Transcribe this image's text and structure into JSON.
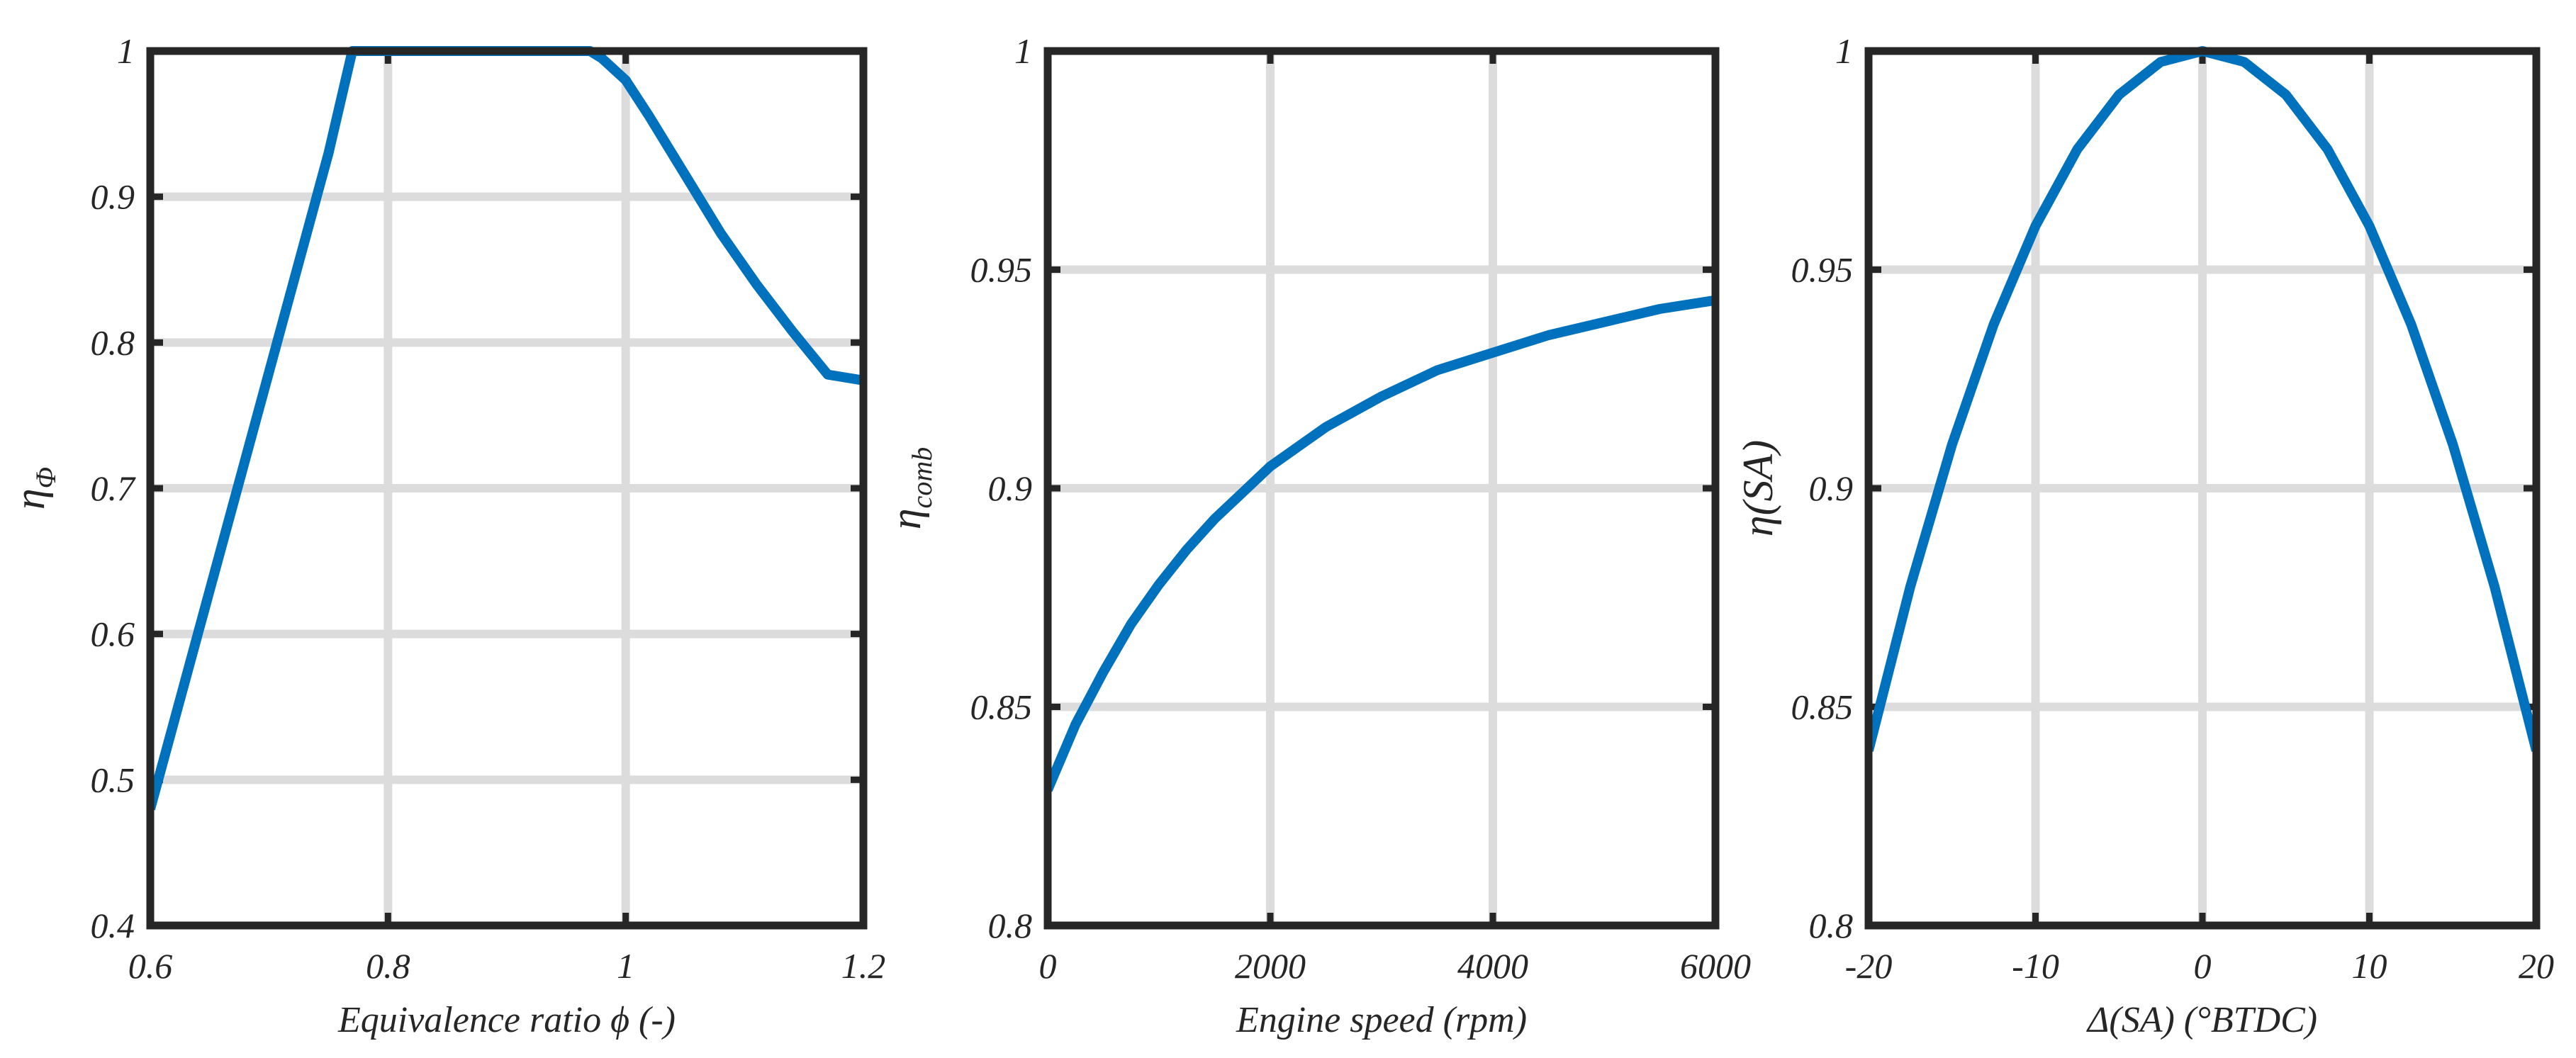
{
  "chart_data": [
    {
      "type": "line",
      "xlabel": "Equivalence ratio   ϕ (-)",
      "ylabel_main": "η",
      "ylabel_sub": "Φ",
      "xlim": [
        0.6,
        1.2
      ],
      "ylim": [
        0.4,
        1.0
      ],
      "xticks": [
        0.6,
        0.8,
        1.0,
        1.2
      ],
      "xtick_labels": [
        "0.6",
        "0.8",
        "1",
        "1.2"
      ],
      "yticks": [
        0.4,
        0.5,
        0.6,
        0.7,
        0.8,
        0.9,
        1.0
      ],
      "ytick_labels": [
        "0.4",
        "0.5",
        "0.6",
        "0.7",
        "0.8",
        "0.9",
        "1"
      ],
      "grid": true,
      "color": "#0072bd",
      "series": [
        {
          "x": [
            0.6,
            0.63,
            0.66,
            0.69,
            0.72,
            0.75,
            0.77,
            0.8,
            0.85,
            0.9,
            0.95,
            0.97,
            0.98,
            1.0,
            1.02,
            1.05,
            1.08,
            1.11,
            1.14,
            1.17,
            1.2
          ],
          "y": [
            0.48,
            0.57,
            0.66,
            0.75,
            0.84,
            0.93,
            1.0,
            1.0,
            1.0,
            1.0,
            1.0,
            1.0,
            0.995,
            0.98,
            0.955,
            0.915,
            0.875,
            0.84,
            0.808,
            0.778,
            0.774
          ]
        }
      ]
    },
    {
      "type": "line",
      "xlabel": "Engine speed (rpm)",
      "ylabel_main": "η",
      "ylabel_sub": "comb",
      "xlim": [
        0,
        6000
      ],
      "ylim": [
        0.8,
        1.0
      ],
      "xticks": [
        0,
        2000,
        4000,
        6000
      ],
      "xtick_labels": [
        "0",
        "2000",
        "4000",
        "6000"
      ],
      "yticks": [
        0.8,
        0.85,
        0.9,
        0.95,
        1.0
      ],
      "ytick_labels": [
        "0.8",
        "0.85",
        "0.9",
        "0.95",
        "1"
      ],
      "grid": true,
      "color": "#0072bd",
      "series": [
        {
          "x": [
            0,
            250,
            500,
            750,
            1000,
            1250,
            1500,
            1750,
            2000,
            2500,
            3000,
            3500,
            4000,
            4500,
            5000,
            5500,
            6000
          ],
          "y": [
            0.831,
            0.846,
            0.858,
            0.869,
            0.878,
            0.886,
            0.893,
            0.899,
            0.905,
            0.914,
            0.921,
            0.927,
            0.931,
            0.935,
            0.938,
            0.941,
            0.943
          ]
        }
      ]
    },
    {
      "type": "line",
      "xlabel": "Δ(SA) (°BTDC)",
      "ylabel_main": "η(SA)",
      "ylabel_sub": "",
      "xlim": [
        -20,
        20
      ],
      "ylim": [
        0.8,
        1.0
      ],
      "xticks": [
        -20,
        -10,
        0,
        10,
        20
      ],
      "xtick_labels": [
        "-20",
        "-10",
        "0",
        "10",
        "20"
      ],
      "yticks": [
        0.8,
        0.85,
        0.9,
        0.95,
        1.0
      ],
      "ytick_labels": [
        "0.8",
        "0.85",
        "0.9",
        "0.95",
        "1"
      ],
      "grid": true,
      "color": "#0072bd",
      "series": [
        {
          "x": [
            -20,
            -17.5,
            -15,
            -12.5,
            -10,
            -7.5,
            -5,
            -2.5,
            0,
            2.5,
            5,
            7.5,
            10,
            12.5,
            15,
            17.5,
            20
          ],
          "y": [
            0.84,
            0.8775,
            0.91,
            0.9375,
            0.96,
            0.9775,
            0.99,
            0.9975,
            1.0,
            0.9975,
            0.99,
            0.9775,
            0.96,
            0.9375,
            0.91,
            0.8775,
            0.84
          ]
        }
      ]
    }
  ]
}
